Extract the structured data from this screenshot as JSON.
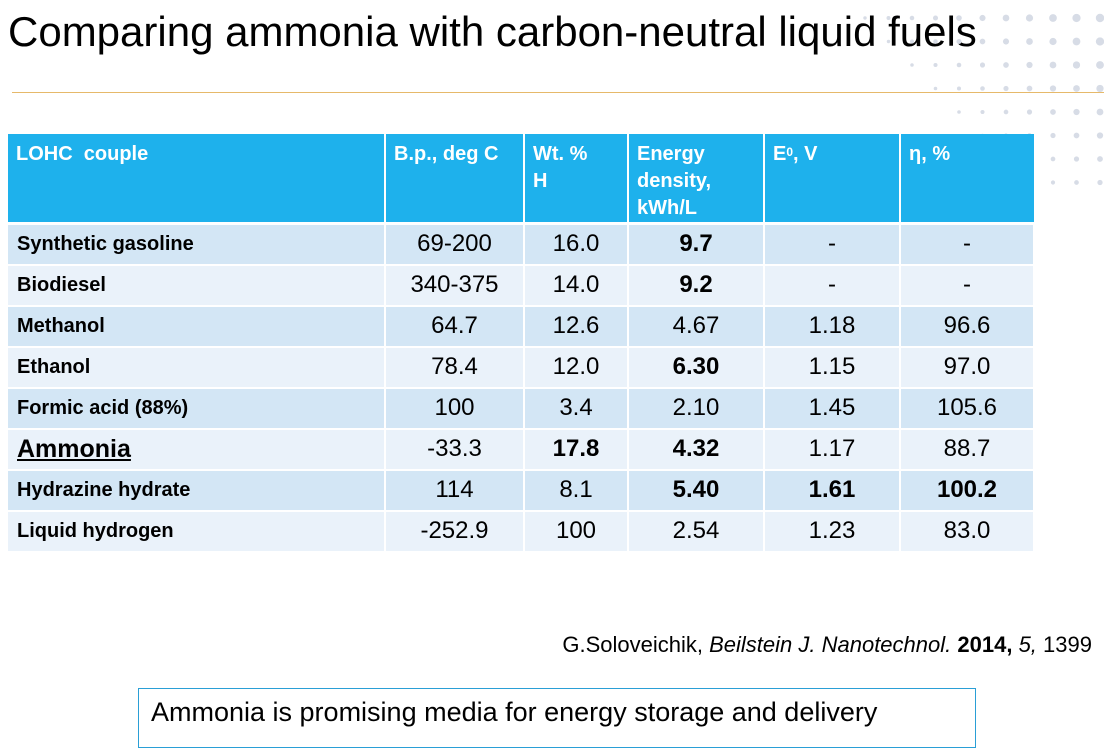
{
  "slide": {
    "title": "Comparing ammonia with carbon-neutral liquid fuels",
    "accent_color": "#1eb1ec",
    "rule_color": "#e6b96a"
  },
  "table": {
    "headers": {
      "couple": "LOHC  couple",
      "bp_line1": "B.p., deg C",
      "wt_line1": "Wt. %",
      "wt_line2": "H",
      "energy_line1": "Energy",
      "energy_line2": "density,",
      "energy_line3": "kWh/L",
      "e0_main": "E",
      "e0_sup": "0",
      "e0_suffix": ", V",
      "eta": "η, %"
    },
    "rows": [
      {
        "name": "Synthetic gasoline",
        "color": "#1976c4",
        "bp": "69-200",
        "wt": "16.0",
        "energy": "9.7",
        "e0": "-",
        "eta": "-"
      },
      {
        "name": "Biodiesel",
        "color": "#11a111",
        "bp": "340-375",
        "wt": "14.0",
        "energy": "9.2",
        "e0": "-",
        "eta": "-"
      },
      {
        "name": "Methanol",
        "color": "#1976c4",
        "bp": "64.7",
        "wt": "12.6",
        "energy": "4.67",
        "e0": "1.18",
        "eta": "96.6"
      },
      {
        "name": "Ethanol",
        "color": "#1976c4",
        "bp": "78.4",
        "wt": "12.0",
        "energy": "6.30",
        "e0": "1.15",
        "eta": "97.0"
      },
      {
        "name": "Formic acid (88%)",
        "color": "#1976c4",
        "bp": "100",
        "wt": "3.4",
        "energy": "2.10",
        "e0": "1.45",
        "eta": "105.6"
      },
      {
        "name": "Ammonia",
        "color": "#6f3ba5",
        "bp": "-33.3",
        "wt": "17.8",
        "energy": "4.32",
        "e0": "1.17",
        "eta": "88.7"
      },
      {
        "name": "Hydrazine hydrate",
        "color": "#6f3ba5",
        "bp": "114",
        "wt": "8.1",
        "energy": "5.40",
        "e0": "1.61",
        "eta": "100.2"
      },
      {
        "name": "Liquid hydrogen",
        "color": "#ff1c1c",
        "bp": "-252.9",
        "wt": "100",
        "energy": "2.54",
        "e0": "1.23",
        "eta": "83.0"
      }
    ]
  },
  "citation": {
    "author": "G.Soloveichik, ",
    "journal": "Beilstein J. Nanotechnol.",
    "year": "2014,",
    "volume": "5,",
    "page": "1399"
  },
  "callout": {
    "text": "Ammonia is promising media for energy storage and delivery"
  }
}
